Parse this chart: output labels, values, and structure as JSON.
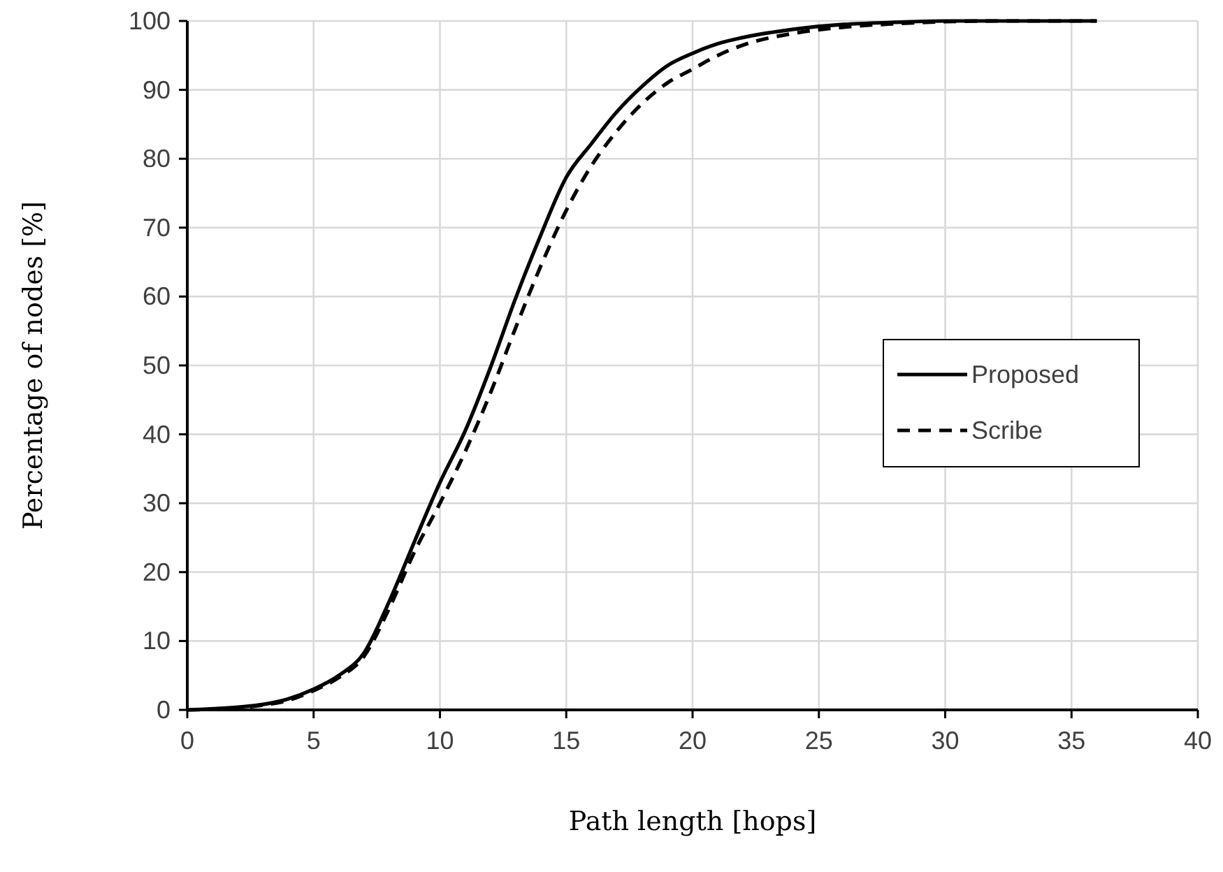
{
  "chart_data": {
    "type": "line",
    "xlabel": "Path length [hops]",
    "ylabel": "Percentage of nodes [%]",
    "xlim": [
      0,
      40
    ],
    "xticks": [
      0,
      5,
      10,
      15,
      20,
      25,
      30,
      35,
      40
    ],
    "ylim": [
      0,
      100
    ],
    "yticks": [
      0,
      10,
      20,
      30,
      40,
      50,
      60,
      70,
      80,
      90,
      100
    ],
    "grid": true,
    "legend": "right",
    "x": [
      0,
      2,
      3,
      4,
      5,
      6,
      7,
      8,
      9,
      10,
      11,
      12,
      13,
      14,
      15,
      16,
      17,
      18,
      19,
      20,
      21,
      22,
      24,
      26,
      28,
      30,
      32,
      36
    ],
    "series": [
      {
        "name": "Proposed",
        "color": "#000000",
        "line_style": "solid",
        "values": [
          0,
          0.4,
          0.8,
          1.6,
          3,
          5,
          8.3,
          15.8,
          24.5,
          33,
          40.5,
          49.7,
          59.8,
          69,
          77.3,
          82.2,
          86.8,
          90.5,
          93.5,
          95.3,
          96.7,
          97.6,
          98.8,
          99.5,
          99.8,
          100,
          100,
          100
        ]
      },
      {
        "name": "Scribe",
        "color": "#000000",
        "line_style": "dashed",
        "values": [
          0,
          0.3,
          0.7,
          1.4,
          2.8,
          4.7,
          7.8,
          14.8,
          23,
          30,
          37.5,
          46,
          55.5,
          64.5,
          72.5,
          79,
          84,
          88,
          91,
          93,
          95,
          96.5,
          98.2,
          99.1,
          99.6,
          99.9,
          100,
          100
        ]
      }
    ]
  }
}
